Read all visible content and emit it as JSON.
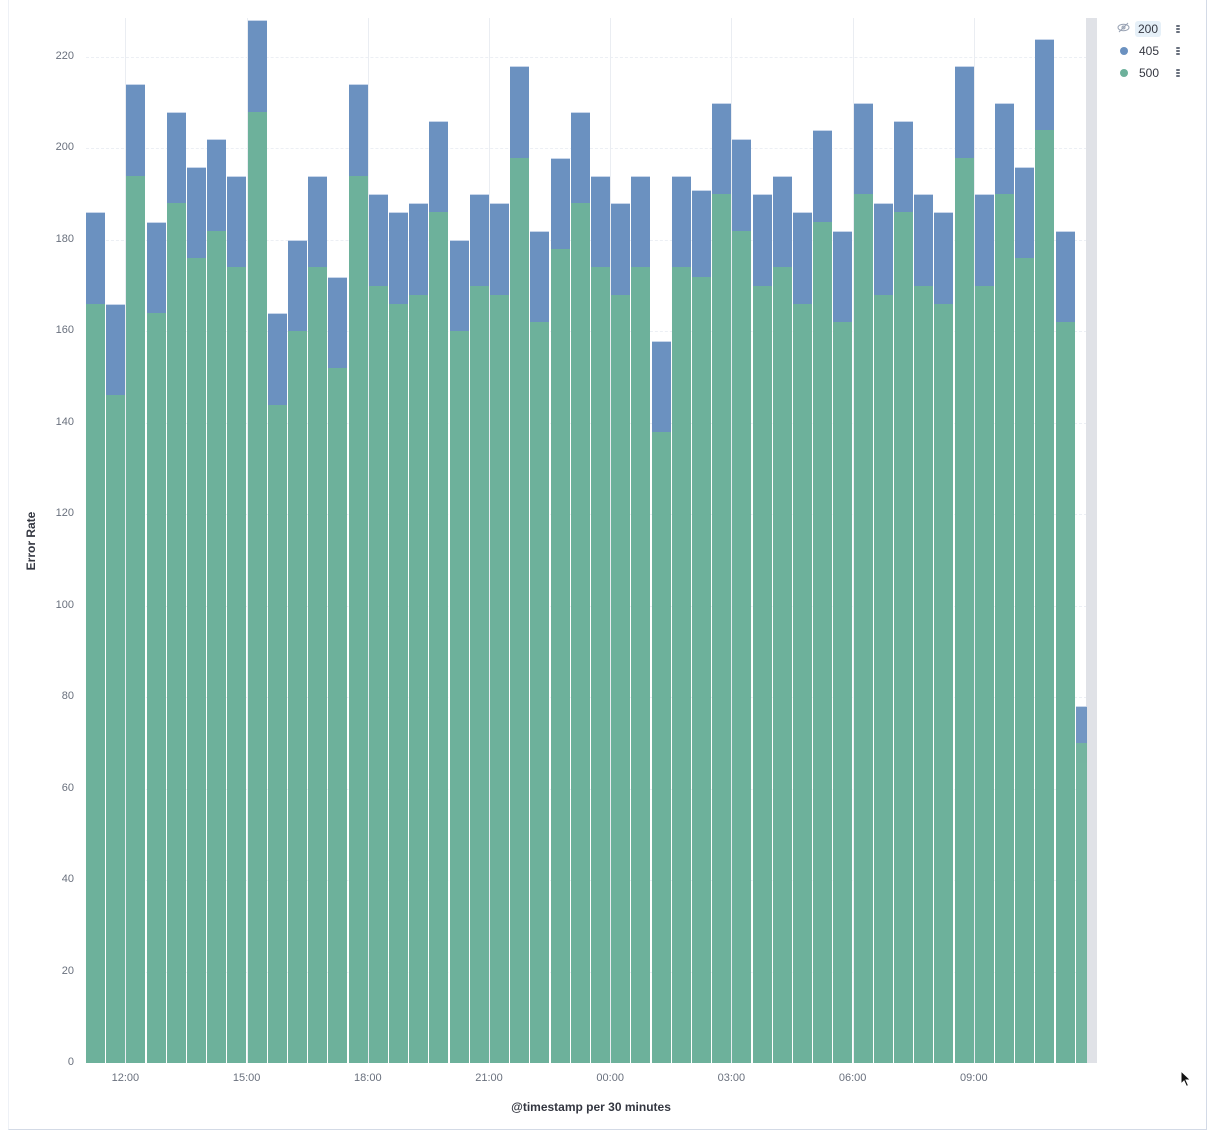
{
  "chart_data": {
    "type": "bar",
    "stacked": true,
    "title": "",
    "xlabel": "@timestamp per 30 minutes",
    "ylabel": "Error Rate",
    "ylim": [
      0,
      228
    ],
    "yticks": [
      0,
      20,
      40,
      60,
      80,
      100,
      120,
      140,
      160,
      180,
      200,
      220
    ],
    "xticks": [
      "12:00",
      "15:00",
      "18:00",
      "21:00",
      "00:00",
      "03:00",
      "06:00",
      "09:00"
    ],
    "grid": true,
    "legend_position": "right",
    "interval_minutes": 30,
    "categories": [
      "11:00",
      "11:30",
      "12:00",
      "12:30",
      "13:00",
      "13:30",
      "14:00",
      "14:30",
      "15:00",
      "15:30",
      "16:00",
      "16:30",
      "17:00",
      "17:30",
      "18:00",
      "18:30",
      "19:00",
      "19:30",
      "20:00",
      "20:30",
      "21:00",
      "21:30",
      "22:00",
      "22:30",
      "23:00",
      "23:30",
      "00:00",
      "00:30",
      "01:00",
      "01:30",
      "02:00",
      "02:30",
      "03:00",
      "03:30",
      "04:00",
      "04:30",
      "05:00",
      "05:30",
      "06:00",
      "06:30",
      "07:00",
      "07:30",
      "08:00",
      "08:30",
      "09:00",
      "09:30",
      "10:00",
      "10:30",
      "11:00",
      "11:30"
    ],
    "series": [
      {
        "name": "500",
        "color": "#6db19b",
        "values": [
          166,
          146,
          194,
          164,
          188,
          176,
          182,
          174,
          208,
          144,
          160,
          174,
          152,
          194,
          170,
          166,
          168,
          186,
          160,
          170,
          168,
          198,
          162,
          178,
          188,
          174,
          168,
          174,
          138,
          174,
          172,
          190,
          182,
          170,
          174,
          166,
          184,
          162,
          190,
          168,
          186,
          170,
          166,
          198,
          170,
          190,
          176,
          204,
          162,
          70
        ]
      },
      {
        "name": "405",
        "color": "#6b91c0",
        "values": [
          20,
          20,
          20,
          20,
          20,
          20,
          20,
          20,
          20,
          20,
          20,
          20,
          20,
          20,
          20,
          20,
          20,
          20,
          20,
          20,
          20,
          20,
          20,
          20,
          20,
          20,
          20,
          20,
          20,
          20,
          19,
          20,
          20,
          20,
          20,
          20,
          20,
          20,
          20,
          20,
          20,
          20,
          20,
          20,
          20,
          20,
          20,
          20,
          20,
          8
        ]
      },
      {
        "name": "200",
        "color": "#d6bf57",
        "hidden": true,
        "values": []
      }
    ],
    "annotations": [
      "last bucket is partial (shaded)"
    ]
  },
  "legend": {
    "items": [
      {
        "label": "200",
        "hidden": true,
        "icon": "eye-closed-icon"
      },
      {
        "label": "405",
        "hidden": false,
        "color": "#6b91c0"
      },
      {
        "label": "500",
        "hidden": false,
        "color": "#6db19b"
      }
    ]
  }
}
